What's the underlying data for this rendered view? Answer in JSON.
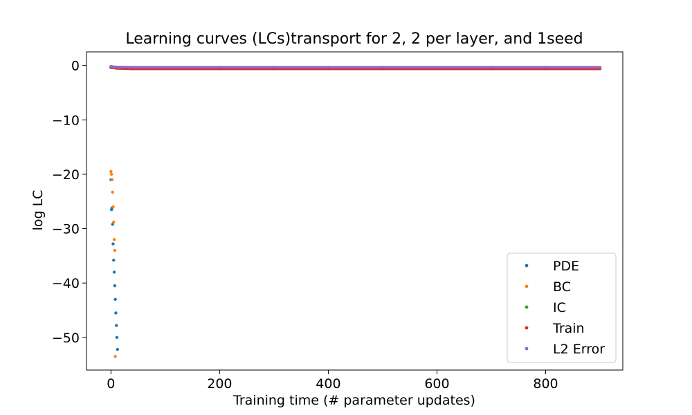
{
  "chart_data": {
    "type": "scatter",
    "title": "Learning curves (LCs)transport for 2, 2 per layer, and 1seed",
    "xlabel": "Training time (# parameter updates)",
    "ylabel": "log LC",
    "xlim": [
      -45,
      942
    ],
    "ylim": [
      -56,
      2.5
    ],
    "xticks": [
      0,
      200,
      400,
      600,
      800
    ],
    "xtick_labels": [
      "0",
      "200",
      "400",
      "600",
      "800"
    ],
    "yticks": [
      0,
      -10,
      -20,
      -30,
      -40,
      -50
    ],
    "ytick_labels": [
      "0",
      "−10",
      "−20",
      "−30",
      "−40",
      "−50"
    ],
    "legend_position": "lower-right",
    "grid": false,
    "series": [
      {
        "name": "PDE",
        "color": "#1f77b4",
        "x": [
          0,
          1,
          2,
          3,
          4,
          5,
          6,
          7,
          8,
          9,
          10,
          11,
          12
        ],
        "y": [
          -21.0,
          -26.5,
          -26.2,
          -29.2,
          -32.8,
          -35.8,
          -38.0,
          -40.5,
          -43.0,
          -45.5,
          -47.8,
          -50.0,
          -52.2
        ]
      },
      {
        "name": "BC",
        "color": "#ff7f0e",
        "x": [
          0,
          1,
          2,
          3,
          4,
          5,
          6,
          7,
          8
        ],
        "y": [
          -19.5,
          -20.0,
          -21.0,
          -23.3,
          -26.0,
          -28.8,
          -32.0,
          -34.0,
          -53.5
        ]
      },
      {
        "name": "IC",
        "color": "#2ca02c",
        "x": [
          0,
          900
        ],
        "y": [
          -0.4,
          -0.4
        ]
      },
      {
        "name": "Train",
        "color": "#d62728",
        "x": [
          0,
          10,
          40,
          100,
          200,
          300,
          400,
          500,
          600,
          700,
          800,
          900
        ],
        "y": [
          -0.3,
          -0.5,
          -0.6,
          -0.6,
          -0.6,
          -0.6,
          -0.6,
          -0.6,
          -0.6,
          -0.6,
          -0.6,
          -0.6
        ]
      },
      {
        "name": "L2 Error",
        "color": "#9467bd",
        "x": [
          0,
          10,
          40,
          100,
          200,
          300,
          400,
          500,
          600,
          700,
          800,
          900
        ],
        "y": [
          -0.2,
          -0.3,
          -0.35,
          -0.35,
          -0.35,
          -0.35,
          -0.35,
          -0.35,
          -0.35,
          -0.35,
          -0.35,
          -0.35
        ]
      }
    ]
  }
}
